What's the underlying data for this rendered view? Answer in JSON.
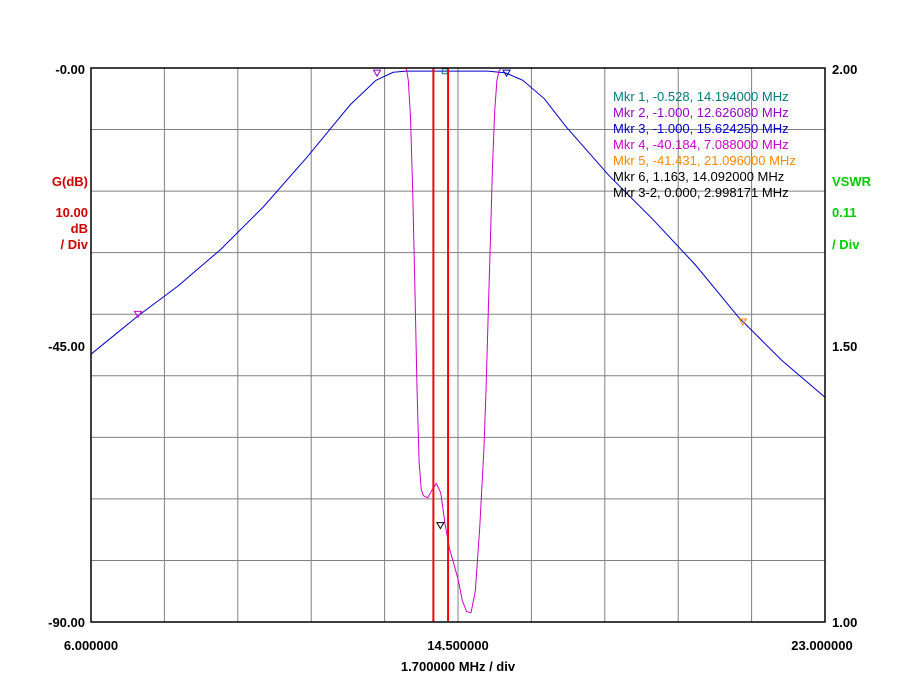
{
  "chart_data": {
    "type": "line",
    "x_axis": {
      "start_label": "6.000000",
      "center_label": "14.500000",
      "stop_label": "23.000000",
      "scale_label": "1.700000 MHz / div",
      "range_mhz": [
        6.0,
        23.0
      ],
      "divisions": 10
    },
    "left_axis": {
      "name": "G(dB)",
      "scale_value": "10.00",
      "scale_unit": "dB",
      "scale_per": "/ Div",
      "top_label": "-0.00",
      "mid_label": "-45.00",
      "bottom_label": "-90.00",
      "range": [
        -90,
        0
      ],
      "color": "#cc0000"
    },
    "right_axis": {
      "name": "VSWR",
      "scale_value": "0.11",
      "scale_per": "/ Div",
      "top_label": "2.00",
      "mid_label": "1.50",
      "bottom_label": "1.00",
      "range": [
        1.0,
        2.0
      ],
      "color": "#00cc00"
    },
    "grid": true,
    "series": [
      {
        "color": "#0000cc",
        "x": [
          6.0,
          7.1,
          8.0,
          9.0,
          10.0,
          11.0,
          12.0,
          12.6,
          13.0,
          13.3,
          13.8,
          14.5,
          15.2,
          15.6,
          16.0,
          16.5,
          17.0,
          18.0,
          19.0,
          20.0,
          21.0,
          22.0,
          23.0
        ],
        "y": [
          -46.5,
          -40.2,
          -35.5,
          -29.5,
          -22.5,
          -14.5,
          -6.0,
          -2.0,
          -0.7,
          -0.5,
          -0.5,
          -0.5,
          -0.5,
          -0.8,
          -2.0,
          -5.0,
          -9.5,
          -17.5,
          -24.5,
          -32.0,
          -40.5,
          -47.5,
          -53.5
        ]
      },
      {
        "color": "#cc00cc",
        "x": [
          13.3,
          13.35,
          13.4,
          13.45,
          13.5,
          13.55,
          13.6,
          13.65,
          13.7,
          13.8,
          13.9,
          14.0,
          14.1,
          14.2,
          14.3,
          14.4,
          14.5,
          14.6,
          14.7,
          14.8,
          14.9,
          15.0,
          15.1,
          15.15,
          15.2,
          15.25,
          15.3,
          15.35,
          15.4,
          15.45,
          15.5,
          15.55
        ],
        "y": [
          0.0,
          -2.0,
          -8.0,
          -20.0,
          -35.0,
          -52.0,
          -64.0,
          -68.5,
          -69.5,
          -69.8,
          -68.5,
          -67.5,
          -69.0,
          -74.0,
          -78.0,
          -80.5,
          -83.0,
          -86.5,
          -88.3,
          -88.5,
          -85.0,
          -75.0,
          -62.0,
          -52.0,
          -40.0,
          -28.0,
          -16.0,
          -7.0,
          -2.0,
          -0.5,
          0.0,
          0.0
        ]
      }
    ],
    "markers": [
      {
        "text": "Mkr 1, -0.528, 14.194000 MHz",
        "color": "#007b7b",
        "x": 14.194,
        "y": -0.528,
        "symbol": "square"
      },
      {
        "text": "Mkr 2, -1.000, 12.626080 MHz",
        "color": "#9900cc",
        "x": 12.62608,
        "y": -1.0,
        "symbol": "triangle"
      },
      {
        "text": "Mkr 3, -1.000, 15.624250 MHz",
        "color": "#0000cc",
        "x": 15.62425,
        "y": -1.0,
        "symbol": "triangle"
      },
      {
        "text": "Mkr 4, -40.184, 7.088000 MHz",
        "color": "#cc00cc",
        "x": 7.088,
        "y": -40.184,
        "symbol": "triangle"
      },
      {
        "text": "Mkr 5, -41.431, 21.096000 MHz",
        "color": "#ff8800",
        "x": 21.096,
        "y": -41.431,
        "symbol": "triangle"
      },
      {
        "text": "Mkr 6, 1.163, 14.092000 MHz",
        "color": "#000000",
        "x": 14.092,
        "y": -74.5,
        "symbol": "triangle"
      },
      {
        "text": "Mkr 3-2, 0.000, 2.998171 MHz",
        "color": "#000000"
      }
    ],
    "vertical_lines": {
      "color": "#ff0000",
      "x": [
        13.93,
        14.27
      ]
    }
  }
}
